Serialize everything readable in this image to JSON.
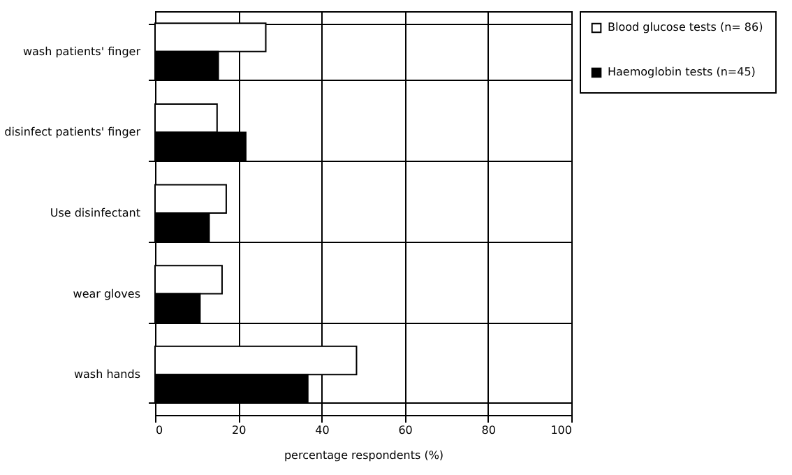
{
  "chart_data": {
    "type": "bar",
    "orientation": "horizontal",
    "xlabel": "percentage respondents (%)",
    "categories": [
      "wash patients' finger",
      "disinfect patients' finger",
      "Use disinfectant",
      "wear gloves",
      "wash hands"
    ],
    "series": [
      {
        "name": "Blood glucose tests (n= 86)",
        "color": "#ffffff",
        "values": [
          26.6,
          14.9,
          17.1,
          16.1,
          48.4
        ]
      },
      {
        "name": "Haemoglobin tests (n=45)",
        "color": "#000000",
        "values": [
          15.2,
          21.8,
          13.0,
          10.8,
          36.7
        ]
      }
    ],
    "xlim": [
      0,
      100
    ],
    "xticks": [
      0,
      20,
      40,
      60,
      80,
      100
    ],
    "grid": true,
    "legend": "right"
  }
}
